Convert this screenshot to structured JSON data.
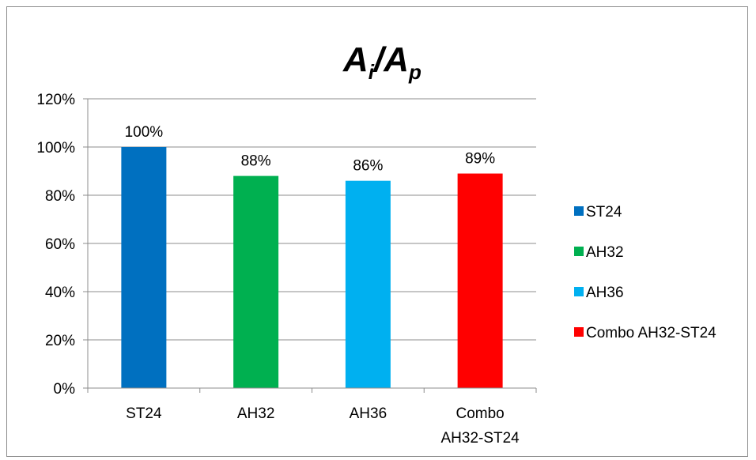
{
  "chart_data": {
    "type": "bar",
    "title": {
      "base1": "A",
      "sub1": "i",
      "sep": "/",
      "base2": "A",
      "sub2": "p"
    },
    "categories": [
      {
        "line1": "ST24",
        "line2": ""
      },
      {
        "line1": "AH32",
        "line2": ""
      },
      {
        "line1": "AH36",
        "line2": ""
      },
      {
        "line1": "Combo",
        "line2": "AH32-ST24"
      }
    ],
    "values": [
      100,
      88,
      86,
      89
    ],
    "data_labels": [
      "100%",
      "88%",
      "86%",
      "89%"
    ],
    "colors": [
      "#0070c0",
      "#00b050",
      "#00b0f0",
      "#ff0000"
    ],
    "ylim": [
      0,
      120
    ],
    "yticks": [
      "0%",
      "20%",
      "40%",
      "60%",
      "80%",
      "100%",
      "120%"
    ],
    "grid": true,
    "legend": {
      "position": "right",
      "entries": [
        "ST24",
        "AH32",
        "AH36",
        "Combo AH32-ST24"
      ]
    }
  }
}
